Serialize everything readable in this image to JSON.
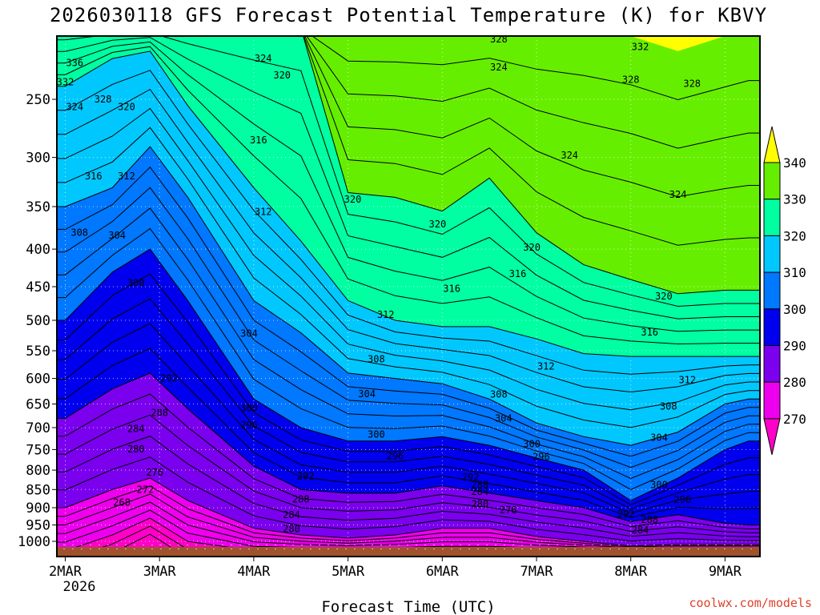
{
  "chart_data": {
    "type": "contour",
    "title": "2026030118 GFS Forecast Potential Temperature (K) for KBVY",
    "xlabel": "Forecast Time (UTC)",
    "ylabel": "",
    "credit": "coolwx.com/models",
    "x_ticks": [
      "2MAR",
      "3MAR",
      "4MAR",
      "5MAR",
      "6MAR",
      "7MAR",
      "8MAR",
      "9MAR"
    ],
    "x_sublabel": "2026",
    "y_ticks": [
      "250",
      "300",
      "350",
      "400",
      "450",
      "500",
      "550",
      "600",
      "650",
      "700",
      "750",
      "800",
      "850",
      "900",
      "950",
      "1000"
    ],
    "y_values": [
      250,
      300,
      350,
      400,
      450,
      500,
      550,
      600,
      650,
      700,
      750,
      800,
      850,
      900,
      950,
      1000
    ],
    "ylim": [
      200,
      1020
    ],
    "xlim_days": [
      -0.1,
      7.25
    ],
    "legend": {
      "values": [
        "340",
        "330",
        "320",
        "310",
        "300",
        "290",
        "280",
        "270"
      ],
      "colors": [
        "#ffff00",
        "#66ee00",
        "#00ffa0",
        "#00c8ff",
        "#0078ff",
        "#0000ee",
        "#7a00ee",
        "#ee00ee",
        "#ff00c8"
      ]
    },
    "fill_colors": {
      "below_270": "#ff00c8",
      "270_280": "#ee00ee",
      "280_290": "#7a00ee",
      "290_300": "#0000ee",
      "300_310": "#0078ff",
      "310_320": "#00c8ff",
      "320_330": "#00ffa0",
      "330_340": "#66ee00",
      "above_340": "#ffff00",
      "ground": "#a0522d"
    },
    "contour_interval": 2,
    "times_days": [
      0,
      0.5,
      0.9,
      1.3,
      2.0,
      2.5,
      3.0,
      3.5,
      4.0,
      4.5,
      5.0,
      5.5,
      6.0,
      6.5,
      7.0,
      7.25
    ],
    "isotherm_pressures": {
      "270": [
        1030,
        980,
        930,
        1000,
        1030,
        1030,
        1030,
        1030,
        1030,
        1030,
        1030,
        1030,
        1030,
        1030,
        1030,
        1030
      ],
      "280": [
        900,
        850,
        820,
        880,
        960,
        980,
        990,
        980,
        960,
        960,
        985,
        1000,
        1015,
        1010,
        1010,
        1010
      ],
      "290": [
        680,
        620,
        590,
        660,
        790,
        850,
        860,
        860,
        840,
        860,
        880,
        900,
        940,
        920,
        945,
        950
      ],
      "300": [
        500,
        430,
        400,
        470,
        640,
        700,
        730,
        730,
        720,
        740,
        770,
        800,
        880,
        820,
        750,
        730
      ],
      "310": [
        350,
        330,
        290,
        340,
        470,
        520,
        590,
        600,
        610,
        640,
        690,
        720,
        740,
        710,
        650,
        640
      ],
      "320": [
        240,
        220,
        215,
        255,
        330,
        390,
        470,
        500,
        510,
        510,
        530,
        555,
        560,
        560,
        560,
        560
      ],
      "330": [
        200,
        200,
        200,
        200,
        200,
        200,
        335,
        340,
        355,
        320,
        380,
        420,
        440,
        460,
        455,
        455
      ],
      "340": [
        200,
        200,
        200,
        200,
        200,
        200,
        200,
        200,
        200,
        200,
        200,
        200,
        205,
        215,
        205,
        200
      ]
    },
    "contour_labels": [
      {
        "v": "336",
        "d": 0.1,
        "p": 223
      },
      {
        "v": "332",
        "d": 0.0,
        "p": 237
      },
      {
        "v": "324",
        "d": 0.1,
        "p": 256
      },
      {
        "v": "328",
        "d": 0.4,
        "p": 250
      },
      {
        "v": "320",
        "d": 0.65,
        "p": 256
      },
      {
        "v": "316",
        "d": 0.3,
        "p": 318
      },
      {
        "v": "312",
        "d": 0.65,
        "p": 318
      },
      {
        "v": "308",
        "d": 0.15,
        "p": 380
      },
      {
        "v": "304",
        "d": 0.55,
        "p": 383
      },
      {
        "v": "300",
        "d": 0.75,
        "p": 445
      },
      {
        "v": "292",
        "d": 1.1,
        "p": 600
      },
      {
        "v": "288",
        "d": 1.0,
        "p": 668
      },
      {
        "v": "284",
        "d": 0.75,
        "p": 703
      },
      {
        "v": "280",
        "d": 0.75,
        "p": 749
      },
      {
        "v": "276",
        "d": 0.95,
        "p": 806
      },
      {
        "v": "272",
        "d": 0.85,
        "p": 850
      },
      {
        "v": "268",
        "d": 0.6,
        "p": 885
      },
      {
        "v": "324",
        "d": 2.1,
        "p": 220
      },
      {
        "v": "320",
        "d": 2.3,
        "p": 232
      },
      {
        "v": "316",
        "d": 2.05,
        "p": 284
      },
      {
        "v": "312",
        "d": 2.1,
        "p": 356
      },
      {
        "v": "304",
        "d": 1.95,
        "p": 521
      },
      {
        "v": "300",
        "d": 1.95,
        "p": 658
      },
      {
        "v": "296",
        "d": 1.95,
        "p": 695
      },
      {
        "v": "292",
        "d": 2.55,
        "p": 815
      },
      {
        "v": "288",
        "d": 2.5,
        "p": 877
      },
      {
        "v": "284",
        "d": 2.4,
        "p": 920
      },
      {
        "v": "280",
        "d": 2.4,
        "p": 962
      },
      {
        "v": "320",
        "d": 3.05,
        "p": 342
      },
      {
        "v": "312",
        "d": 3.4,
        "p": 491
      },
      {
        "v": "308",
        "d": 3.3,
        "p": 565
      },
      {
        "v": "304",
        "d": 3.2,
        "p": 630
      },
      {
        "v": "300",
        "d": 3.3,
        "p": 715
      },
      {
        "v": "296",
        "d": 3.5,
        "p": 765
      },
      {
        "v": "320",
        "d": 3.95,
        "p": 370
      },
      {
        "v": "316",
        "d": 4.1,
        "p": 453
      },
      {
        "v": "328",
        "d": 4.6,
        "p": 207
      },
      {
        "v": "324",
        "d": 4.6,
        "p": 226
      },
      {
        "v": "308",
        "d": 4.6,
        "p": 631
      },
      {
        "v": "304",
        "d": 4.65,
        "p": 680
      },
      {
        "v": "292",
        "d": 4.3,
        "p": 818
      },
      {
        "v": "288",
        "d": 4.4,
        "p": 838
      },
      {
        "v": "284",
        "d": 4.4,
        "p": 856
      },
      {
        "v": "280",
        "d": 4.4,
        "p": 890
      },
      {
        "v": "276",
        "d": 4.7,
        "p": 907
      },
      {
        "v": "320",
        "d": 4.95,
        "p": 398
      },
      {
        "v": "316",
        "d": 4.8,
        "p": 432
      },
      {
        "v": "312",
        "d": 5.1,
        "p": 578
      },
      {
        "v": "300",
        "d": 4.95,
        "p": 737
      },
      {
        "v": "296",
        "d": 5.05,
        "p": 767
      },
      {
        "v": "324",
        "d": 5.35,
        "p": 298
      },
      {
        "v": "332",
        "d": 6.1,
        "p": 212
      },
      {
        "v": "328",
        "d": 6.0,
        "p": 235
      },
      {
        "v": "328",
        "d": 6.65,
        "p": 238
      },
      {
        "v": "324",
        "d": 6.5,
        "p": 337
      },
      {
        "v": "320",
        "d": 6.35,
        "p": 464
      },
      {
        "v": "316",
        "d": 6.2,
        "p": 519
      },
      {
        "v": "312",
        "d": 6.6,
        "p": 603
      },
      {
        "v": "308",
        "d": 6.4,
        "p": 655
      },
      {
        "v": "304",
        "d": 6.3,
        "p": 722
      },
      {
        "v": "300",
        "d": 6.3,
        "p": 838
      },
      {
        "v": "296",
        "d": 6.55,
        "p": 878
      },
      {
        "v": "292",
        "d": 5.95,
        "p": 918
      },
      {
        "v": "288",
        "d": 6.2,
        "p": 935
      },
      {
        "v": "284",
        "d": 6.1,
        "p": 965
      }
    ]
  }
}
